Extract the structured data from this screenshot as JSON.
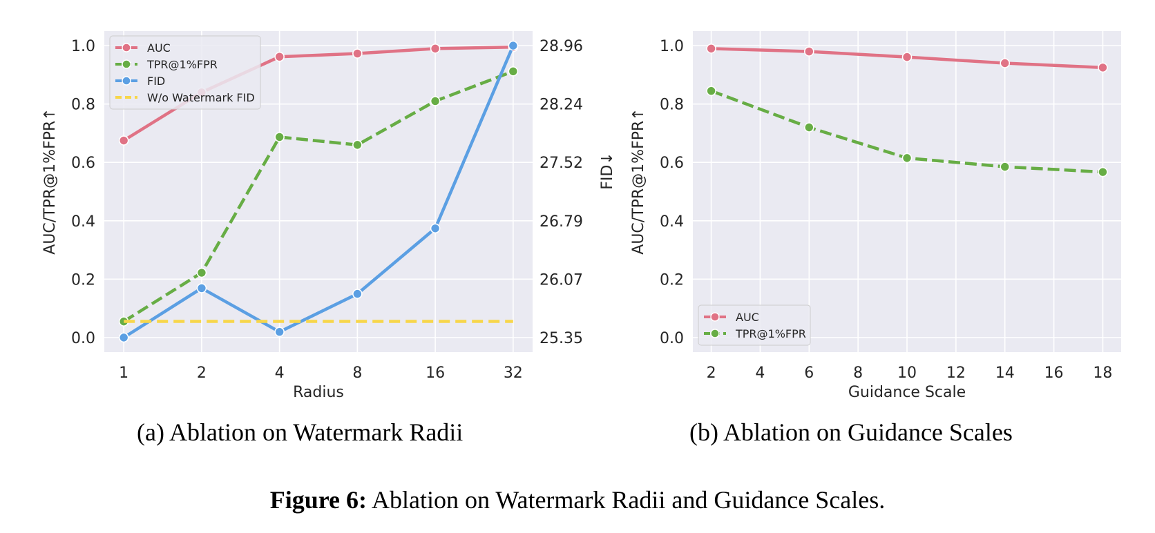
{
  "figure_caption": {
    "label": "Figure 6:",
    "text": "Ablation on Watermark Radii and Guidance Scales."
  },
  "colors": {
    "auc": "#e07285",
    "tpr": "#67ad45",
    "fid": "#5b9fe3",
    "nowm": "#f7d64a",
    "panel_bg": "#eaeaf2",
    "grid": "#ffffff"
  },
  "chart_data": [
    {
      "type": "line",
      "caption": "(a)  Ablation on Watermark Radii",
      "xlabel": "Radius",
      "ylabel": "AUC/TPR@1%FPR↑",
      "ylabel_right": "FID↓",
      "categories": [
        "1",
        "2",
        "4",
        "8",
        "16",
        "32"
      ],
      "ylim": [
        -0.05,
        1.05
      ],
      "yticks": [
        "0.0",
        "0.2",
        "0.4",
        "0.6",
        "0.8",
        "1.0"
      ],
      "y2ticks": [
        "25.35",
        "26.07",
        "26.79",
        "27.52",
        "28.24",
        "28.96"
      ],
      "y2lim": [
        25.35,
        28.96
      ],
      "legend_position": "upper-left",
      "series": [
        {
          "name": "AUC",
          "axis": "left",
          "style": "solid",
          "marker": true,
          "color_key": "auc",
          "values": [
            0.675,
            0.84,
            0.962,
            0.973,
            0.99,
            0.995
          ]
        },
        {
          "name": "TPR@1%FPR",
          "axis": "left",
          "style": "dashed",
          "marker": true,
          "color_key": "tpr",
          "values": [
            0.055,
            0.222,
            0.687,
            0.66,
            0.81,
            0.912
          ]
        },
        {
          "name": "FID",
          "axis": "right",
          "style": "solid",
          "marker": true,
          "color_key": "fid",
          "values": [
            25.35,
            25.96,
            25.42,
            25.89,
            26.7,
            28.96
          ]
        },
        {
          "name": "W/o Watermark FID",
          "axis": "right",
          "style": "dashed",
          "marker": false,
          "color_key": "nowm",
          "values": [
            25.55,
            25.55,
            25.55,
            25.55,
            25.55,
            25.55
          ]
        }
      ]
    },
    {
      "type": "line",
      "caption": "(b)  Ablation on Guidance Scales",
      "xlabel": "Guidance Scale",
      "ylabel": "AUC/TPR@1%FPR↑",
      "xlim": [
        1.25,
        18.75
      ],
      "xticks": [
        "2",
        "4",
        "6",
        "8",
        "10",
        "12",
        "14",
        "16",
        "18"
      ],
      "ylim": [
        -0.05,
        1.05
      ],
      "yticks": [
        "0.0",
        "0.2",
        "0.4",
        "0.6",
        "0.8",
        "1.0"
      ],
      "legend_position": "lower-left",
      "series": [
        {
          "name": "AUC",
          "style": "solid",
          "marker": true,
          "color_key": "auc",
          "x": [
            2,
            6,
            10,
            14,
            18
          ],
          "values": [
            0.99,
            0.98,
            0.961,
            0.94,
            0.925
          ]
        },
        {
          "name": "TPR@1%FPR",
          "style": "dashed",
          "marker": true,
          "color_key": "tpr",
          "x": [
            2,
            6,
            10,
            14,
            18
          ],
          "values": [
            0.845,
            0.72,
            0.615,
            0.585,
            0.567
          ]
        }
      ]
    }
  ]
}
